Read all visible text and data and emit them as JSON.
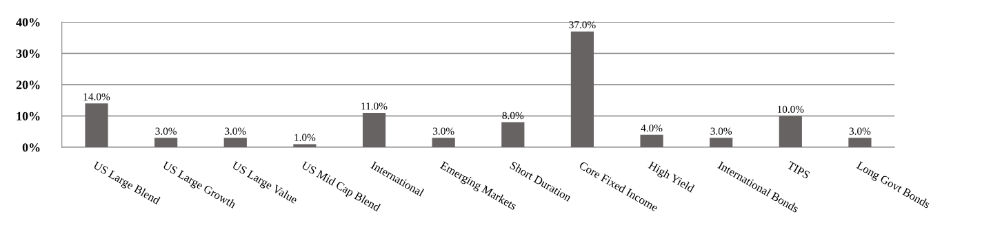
{
  "chart_data": {
    "type": "bar",
    "categories": [
      "US Large Blend",
      "US Large Growth",
      "US Large Value",
      "US Mid Cap Blend",
      "International",
      "Emerging Markets",
      "Short Duration",
      "Core Fixed Income",
      "High Yield",
      "International Bonds",
      "TIPS",
      "Long Govt Bonds"
    ],
    "values": [
      14.0,
      3.0,
      3.0,
      1.0,
      11.0,
      3.0,
      8.0,
      37.0,
      4.0,
      3.0,
      10.0,
      3.0
    ],
    "value_labels": [
      "14.0%",
      "3.0%",
      "3.0%",
      "1.0%",
      "11.0%",
      "3.0%",
      "8.0%",
      "37.0%",
      "4.0%",
      "3.0%",
      "10.0%",
      "3.0%"
    ],
    "color": "#686363",
    "ylim": [
      0,
      40
    ],
    "yticks": [
      {
        "value": 0,
        "label": "0%"
      },
      {
        "value": 10,
        "label": "10%"
      },
      {
        "value": 20,
        "label": "20%"
      },
      {
        "value": 30,
        "label": "30%"
      },
      {
        "value": 40,
        "label": "40%"
      }
    ],
    "grid": "y",
    "legend": false
  }
}
